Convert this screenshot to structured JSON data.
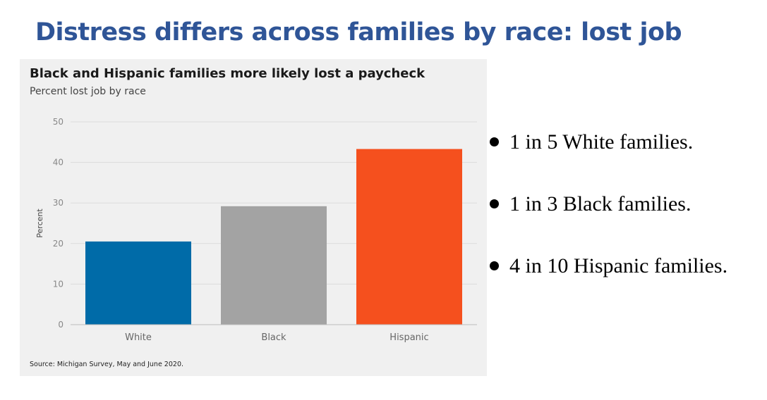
{
  "slide": {
    "title": "Distress differs across families by race:  lost job"
  },
  "chart_data": {
    "type": "bar",
    "title": "Black and Hispanic families more likely lost a paycheck",
    "subtitle": "Percent lost job by race",
    "ylabel": "Percent",
    "xlabel": "",
    "categories": [
      "White",
      "Black",
      "Hispanic"
    ],
    "values": [
      20.5,
      29.2,
      43.3
    ],
    "colors": [
      "#006ba8",
      "#a3a3a3",
      "#f5501e"
    ],
    "ylim": [
      0,
      50
    ],
    "yticks": [
      0,
      10,
      20,
      30,
      40,
      50
    ],
    "grid": true,
    "source": "Source: Michigan Survey, May and June 2020."
  },
  "bullets": [
    "1 in 5 White families.",
    "1 in 3 Black families.",
    "4 in 10 Hispanic families."
  ]
}
